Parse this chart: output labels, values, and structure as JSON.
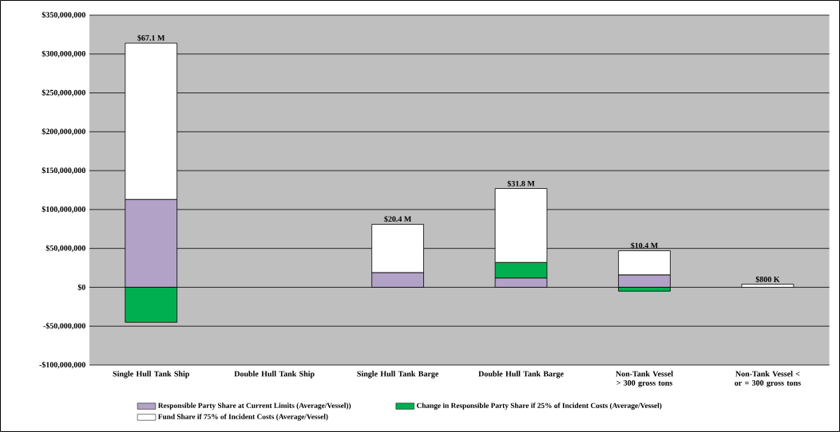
{
  "chart_data": {
    "type": "bar",
    "stacked": true,
    "categories": [
      "Single Hull Tank Ship",
      "Double Hull Tank Ship",
      "Single Hull Tank Barge",
      "Double Hull Tank Barge",
      "Non-Tank Vessel > 300 gross tons",
      "Non-Tank Vessel < or = 300 gross tons"
    ],
    "series": [
      {
        "name": "Responsible Party Share at Current Limits (Average/Vessel))",
        "color": "#b3a2c7",
        "values": [
          113000000,
          null,
          19000000,
          12000000,
          16000000,
          null
        ]
      },
      {
        "name": "Change in Responsible Party Share if 25% of Incident Costs (Average/Vessel)",
        "color": "#00b050",
        "values": [
          -45000000,
          null,
          null,
          20000000,
          -5000000,
          null
        ]
      },
      {
        "name": "Fund Share if 75% of Incident Costs (Average/Vessel)",
        "color": "#ffffff",
        "values": [
          201000000,
          null,
          62000000,
          95000000,
          31000000,
          4000000
        ]
      }
    ],
    "ylim": [
      -100000000,
      350000000
    ],
    "yticks": [
      {
        "value": -100000000,
        "label": "-$100,000,000"
      },
      {
        "value": -50000000,
        "label": "-$50,000,000"
      },
      {
        "value": 0,
        "label": "$0"
      },
      {
        "value": 50000000,
        "label": "$50,000,000"
      },
      {
        "value": 100000000,
        "label": "$100,000,000"
      },
      {
        "value": 150000000,
        "label": "$150,000,000"
      },
      {
        "value": 200000000,
        "label": "$200,000,000"
      },
      {
        "value": 250000000,
        "label": "$250,000,000"
      },
      {
        "value": 300000000,
        "label": "$300,000,000"
      },
      {
        "value": 350000000,
        "label": "$350,000,000"
      }
    ],
    "grid": "y",
    "legend": "bottom",
    "annotations": [
      {
        "text": "$67.1 M",
        "x": "Single Hull Tank Ship",
        "y": 314300000
      },
      {
        "text": "$20.4 M",
        "x": "Single Hull Tank Barge",
        "y": 81400000
      },
      {
        "text": "$31.8 M",
        "x": "Double Hull Tank Barge",
        "y": 126900000
      },
      {
        "text": "$10.4 M",
        "x": "Non-Tank Vessel > 300 gross tons",
        "y": 47200000
      },
      {
        "text": "$800 K",
        "x": "Non-Tank Vessel < or = 300 gross tons",
        "y": 3800000
      }
    ]
  }
}
